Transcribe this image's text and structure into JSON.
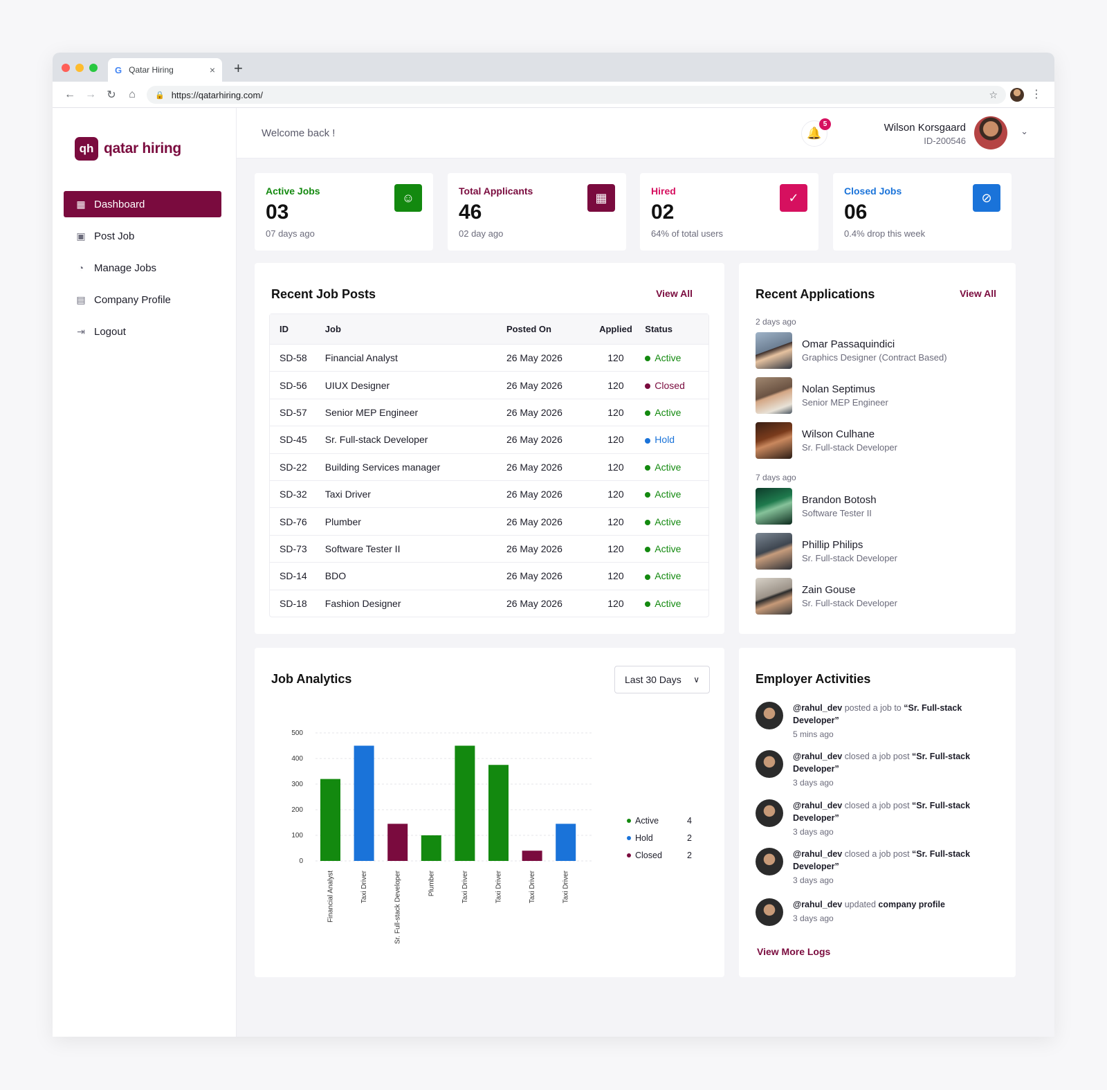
{
  "browser": {
    "tab_title": "Qatar Hiring",
    "tab_favicon": "G",
    "tab_close": "×",
    "new_tab": "+",
    "url": "https://qatarhiring.com/"
  },
  "brand": {
    "logo_mark": "qh",
    "name": "qatar hiring",
    "color": "#7a0b3e"
  },
  "sidebar": {
    "items": [
      {
        "label": "Dashboard",
        "icon": "grid-icon",
        "glyph": "▦"
      },
      {
        "label": "Post Job",
        "icon": "briefcase-icon",
        "glyph": "▣"
      },
      {
        "label": "Manage Jobs",
        "icon": "pie-chart-icon",
        "glyph": "◔"
      },
      {
        "label": "Company Profile",
        "icon": "building-icon",
        "glyph": "▤"
      },
      {
        "label": "Logout",
        "icon": "logout-icon",
        "glyph": "⇥"
      }
    ]
  },
  "header": {
    "welcome": "Welcome back !",
    "notification_count": "5",
    "user_name": "Wilson Korsgaard",
    "user_id": "ID-200546"
  },
  "stats": [
    {
      "label": "Active Jobs",
      "value": "03",
      "sub": "07 days ago",
      "color": "#13890f",
      "icon": "users-icon",
      "glyph": "☺"
    },
    {
      "label": "Total Applicants",
      "value": "46",
      "sub": "02 day ago",
      "color": "#7a0b3e",
      "icon": "calendar-check-icon",
      "glyph": "▦"
    },
    {
      "label": "Hired",
      "value": "02",
      "sub": "64% of total users",
      "color": "#d6105f",
      "icon": "user-check-icon",
      "glyph": "✓"
    },
    {
      "label": "Closed Jobs",
      "value": "06",
      "sub": "0.4% drop this week",
      "color": "#1a73d9",
      "icon": "ban-icon",
      "glyph": "⊘"
    }
  ],
  "recent_jobs": {
    "title": "Recent Job Posts",
    "view_all": "View All",
    "columns": [
      "ID",
      "Job",
      "Posted On",
      "Applied",
      "Status"
    ],
    "rows": [
      {
        "id": "SD-58",
        "job": "Financial Analyst",
        "date": "26 May 2026",
        "applied": "120",
        "status": "Active"
      },
      {
        "id": "SD-56",
        "job": "UIUX Designer",
        "date": "26 May 2026",
        "applied": "120",
        "status": "Closed"
      },
      {
        "id": "SD-57",
        "job": "Senior MEP Engineer",
        "date": "26 May 2026",
        "applied": "120",
        "status": "Active"
      },
      {
        "id": "SD-45",
        "job": "Sr. Full-stack Developer",
        "date": "26 May 2026",
        "applied": "120",
        "status": "Hold"
      },
      {
        "id": "SD-22",
        "job": "Building Services manager",
        "date": "26 May 2026",
        "applied": "120",
        "status": "Active"
      },
      {
        "id": "SD-32",
        "job": "Taxi Driver",
        "date": "26 May 2026",
        "applied": "120",
        "status": "Active"
      },
      {
        "id": "SD-76",
        "job": "Plumber",
        "date": "26 May 2026",
        "applied": "120",
        "status": "Active"
      },
      {
        "id": "SD-73",
        "job": "Software Tester II",
        "date": "26 May 2026",
        "applied": "120",
        "status": "Active"
      },
      {
        "id": "SD-14",
        "job": "BDO",
        "date": "26 May 2026",
        "applied": "120",
        "status": "Active"
      },
      {
        "id": "SD-18",
        "job": "Fashion Designer",
        "date": "26 May 2026",
        "applied": "120",
        "status": "Active"
      }
    ]
  },
  "status_colors": {
    "Active": "#13890f",
    "Closed": "#7a0b3e",
    "Hold": "#1a73d9"
  },
  "recent_applications": {
    "title": "Recent Applications",
    "view_all": "View All",
    "groups": [
      {
        "label": "2 days ago",
        "items": [
          {
            "name": "Omar Passaquindici",
            "role": "Graphics Designer (Contract Based)"
          },
          {
            "name": "Nolan Septimus",
            "role": "Senior MEP Engineer"
          },
          {
            "name": "Wilson Culhane",
            "role": "Sr. Full-stack Developer"
          }
        ]
      },
      {
        "label": "7 days ago",
        "items": [
          {
            "name": "Brandon Botosh",
            "role": "Software Tester II"
          },
          {
            "name": "Phillip Philips",
            "role": "Sr. Full-stack Developer"
          },
          {
            "name": "Zain Gouse",
            "role": "Sr. Full-stack Developer"
          }
        ]
      }
    ]
  },
  "job_analytics": {
    "title": "Job Analytics",
    "range": "Last 30 Days"
  },
  "chart_data": {
    "type": "bar",
    "categories": [
      "Financial Analyst",
      "Taxi Driver",
      "Sr. Full-stack Developer",
      "Plumber",
      "Taxi Driver",
      "Taxi Driver",
      "Taxi Driver",
      "Taxi Driver"
    ],
    "values": [
      320,
      450,
      145,
      100,
      450,
      375,
      40,
      145
    ],
    "bar_status": [
      "Active",
      "Hold",
      "Closed",
      "Active",
      "Active",
      "Active",
      "Closed",
      "Hold"
    ],
    "yticks": [
      0,
      100,
      200,
      300,
      400,
      500
    ],
    "ylim": [
      0,
      500
    ],
    "grid": true,
    "legend_position": "right",
    "legend": [
      {
        "name": "Active",
        "count": "4",
        "color": "#13890f"
      },
      {
        "name": "Hold",
        "count": "2",
        "color": "#1a73d9"
      },
      {
        "name": "Closed",
        "count": "2",
        "color": "#7a0b3e"
      }
    ]
  },
  "activities": {
    "title": "Employer Activities",
    "items": [
      {
        "user": "@rahul_dev",
        "verb": "posted a job to",
        "object": "“Sr. Full-stack Developer”",
        "time": "5 mins ago"
      },
      {
        "user": "@rahul_dev",
        "verb": "closed a job post",
        "object": "“Sr. Full-stack Developer”",
        "time": "3 days ago"
      },
      {
        "user": "@rahul_dev",
        "verb": "closed a job post",
        "object": "“Sr. Full-stack Developer”",
        "time": "3 days ago"
      },
      {
        "user": "@rahul_dev",
        "verb": "closed a job post",
        "object": "“Sr. Full-stack Developer”",
        "time": "3 days ago"
      },
      {
        "user": "@rahul_dev",
        "verb": "updated",
        "object": "company profile",
        "time": "3 days ago"
      }
    ],
    "more": "View More Logs"
  }
}
